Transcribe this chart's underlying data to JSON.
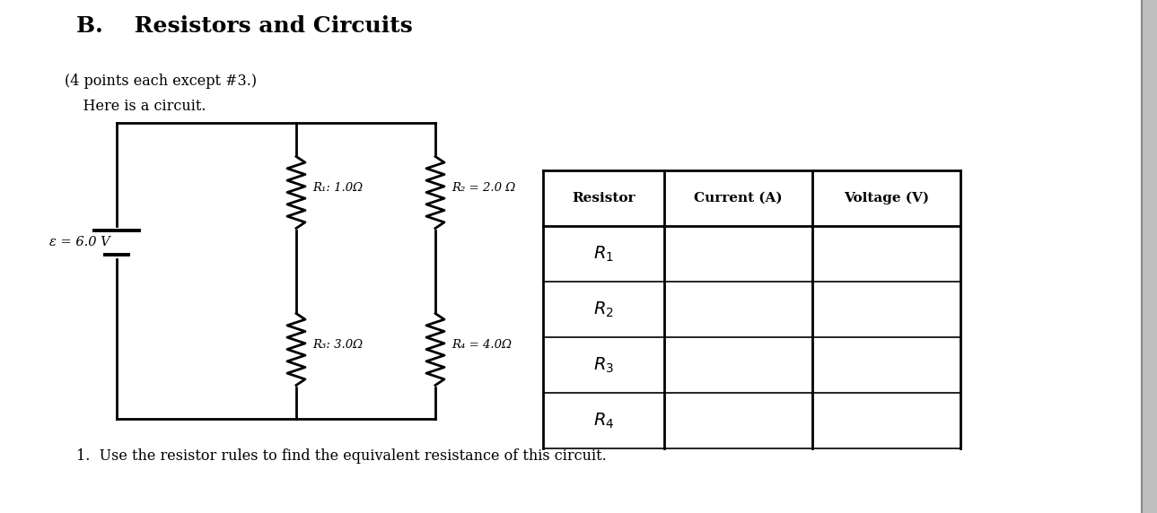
{
  "title": "B.    Resistors and Circuits",
  "subtitle1": "(4 points each except #3.)",
  "subtitle2": "    Here is a circuit.",
  "emf_label": "ε = 6.0 V",
  "r1_label": "R₁: 1.0Ω",
  "r2_label": "R₂ = 2.0 Ω",
  "r3_label": "R₃: 3.0Ω",
  "r4_label": "R₄ = 4.0Ω",
  "table_headers": [
    "Resistor",
    "Current (A)",
    "Voltage (V)"
  ],
  "table_rows": [
    "R_1",
    "R_2",
    "R_3",
    "R_4"
  ],
  "question1": "1.  Use the resistor rules to find the equivalent resistance of this circuit.",
  "bg_color": "#ffffff",
  "text_color": "#000000",
  "line_color": "#000000",
  "right_bar_color": "#aaaaaa"
}
